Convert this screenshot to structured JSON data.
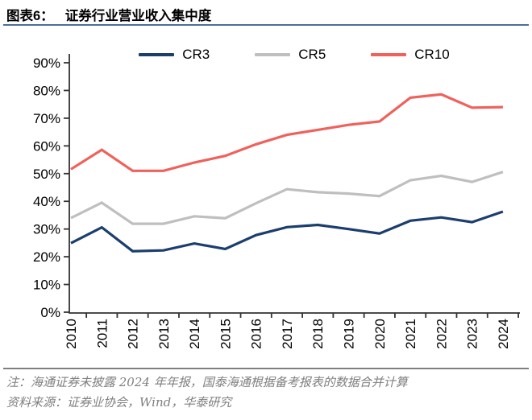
{
  "header": {
    "figure_label": "图表6：",
    "title": "证券行业营业收入集中度"
  },
  "colors": {
    "title_rule": "#4C6E9C",
    "footer_rule": "#7F7F7F",
    "axis": "#333333",
    "tick_label": "#000000",
    "footer_text": "#808080",
    "cr3": "#1B3E6F",
    "cr5": "#BFBFBF",
    "cr10": "#F0615C"
  },
  "chart_data": {
    "type": "line",
    "title": "证券行业营业收入集中度",
    "categories": [
      "2010",
      "2011",
      "2012",
      "2013",
      "2014",
      "2015",
      "2016",
      "2017",
      "2018",
      "2019",
      "2020",
      "2021",
      "2022",
      "2023",
      "2024"
    ],
    "series": [
      {
        "name": "CR3",
        "color": "#1B3E6F",
        "values": [
          24.9,
          30.6,
          22.0,
          22.3,
          24.8,
          22.8,
          27.8,
          30.7,
          31.5,
          30.0,
          28.4,
          33.0,
          34.2,
          32.5,
          36.3
        ]
      },
      {
        "name": "CR5",
        "color": "#BFBFBF",
        "values": [
          34.0,
          39.5,
          31.9,
          31.9,
          34.6,
          33.9,
          39.3,
          44.4,
          43.3,
          42.8,
          41.9,
          47.6,
          49.2,
          47.0,
          50.6
        ]
      },
      {
        "name": "CR10",
        "color": "#F0615C",
        "values": [
          51.6,
          58.6,
          51.0,
          51.0,
          54.0,
          56.4,
          60.6,
          64.0,
          65.8,
          67.6,
          68.8,
          77.4,
          78.6,
          73.8,
          74.0
        ]
      }
    ],
    "xlabel": "",
    "ylabel": "",
    "ylim": [
      0,
      90
    ],
    "ytick_step": 10,
    "ytick_format": "percent",
    "x_tick_label_rotation": -90,
    "grid": false,
    "legend_position": "top"
  },
  "footer": {
    "note": "注：海通证券未披露 2024 年年报，国泰海通根据备考报表的数据合并计算",
    "source": "资料来源：证券业协会，Wind，华泰研究"
  }
}
